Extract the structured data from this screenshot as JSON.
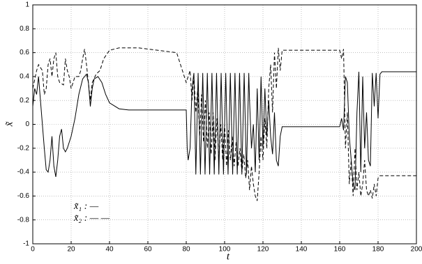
{
  "chart_data": {
    "type": "line",
    "xlabel": "t",
    "ylabel": "x̃",
    "xlim": [
      0,
      200
    ],
    "xticks": [
      0,
      20,
      40,
      60,
      80,
      100,
      120,
      140,
      160,
      180,
      200
    ],
    "ylim": [
      -1,
      1
    ],
    "yticks": [
      -1,
      -0.8,
      -0.6,
      -0.4,
      -0.2,
      0,
      0.2,
      0.4,
      0.6,
      0.8,
      1
    ],
    "grid": true,
    "series": [
      {
        "name": "x̃₁ : —",
        "color": "#000000",
        "dash": "none",
        "x": [
          0,
          1,
          2,
          3,
          4,
          5,
          6,
          7,
          8,
          9,
          10,
          11,
          12,
          13,
          14,
          15,
          16,
          17,
          18,
          20,
          22,
          24,
          26,
          28,
          29,
          30,
          31,
          32,
          34,
          36,
          38,
          40,
          45,
          50,
          60,
          70,
          80,
          80.5,
          81,
          82,
          83,
          84,
          85,
          86.2,
          87.4,
          88.6,
          89.8,
          91,
          92.2,
          93.4,
          94.6,
          95.8,
          97,
          98.2,
          99.4,
          100.6,
          101.8,
          103,
          104.2,
          105.4,
          106.6,
          107.8,
          109,
          110.2,
          111.4,
          112.6,
          113,
          114,
          115,
          116,
          117,
          118,
          119,
          120,
          121,
          122,
          123,
          124,
          125,
          126,
          127,
          128,
          129,
          130,
          135,
          145,
          160,
          161,
          162,
          163,
          164,
          165,
          166,
          167,
          168,
          169,
          170,
          171,
          172,
          173,
          174,
          175,
          176,
          177,
          178,
          179,
          180,
          181,
          182,
          200
        ],
        "values": [
          0.15,
          0.3,
          0.25,
          0.4,
          0.2,
          0,
          -0.2,
          -0.38,
          -0.4,
          -0.3,
          -0.1,
          -0.35,
          -0.44,
          -0.3,
          -0.1,
          -0.04,
          -0.2,
          -0.23,
          -0.2,
          -0.1,
          0.05,
          0.25,
          0.38,
          0.42,
          0.35,
          0.15,
          0.3,
          0.38,
          0.4,
          0.35,
          0.25,
          0.18,
          0.13,
          0.12,
          0.12,
          0.12,
          0.12,
          -0.2,
          -0.3,
          -0.2,
          0.3,
          0.43,
          -0.42,
          0.43,
          -0.42,
          0.43,
          -0.42,
          0.43,
          -0.42,
          0.43,
          -0.42,
          0.43,
          -0.42,
          0.43,
          -0.42,
          0.43,
          -0.42,
          0.43,
          -0.42,
          0.43,
          -0.42,
          0.43,
          -0.42,
          0.43,
          -0.42,
          0.43,
          0.2,
          -0.2,
          0,
          -0.4,
          0.3,
          -0.3,
          0.4,
          -0.2,
          0.3,
          -0.1,
          0.2,
          -0.1,
          -0.25,
          0.1,
          -0.3,
          -0.35,
          -0.1,
          -0.02,
          -0.02,
          -0.02,
          -0.02,
          0.05,
          -0.05,
          0.4,
          0.35,
          -0.1,
          -0.3,
          -0.5,
          -0.55,
          0.1,
          0.44,
          -0.4,
          0.4,
          -0.2,
          0.1,
          -0.3,
          -0.35,
          0.43,
          0.15,
          0.43,
          0.05,
          0.42,
          0.44,
          0.44
        ]
      },
      {
        "name": "x̃₂ : — —",
        "color": "#000000",
        "dash": "5,3",
        "x": [
          0,
          2,
          3,
          5,
          6,
          7,
          8,
          9,
          10,
          11,
          12,
          13,
          14,
          16,
          17,
          18,
          19,
          20,
          22,
          24,
          25,
          26,
          27,
          28,
          29,
          30,
          31,
          33,
          35,
          37,
          40,
          45,
          55,
          65,
          75,
          80,
          82,
          83,
          84,
          85,
          86,
          87,
          88,
          89,
          90,
          91,
          92,
          93,
          94,
          95,
          96,
          97,
          98,
          99,
          100,
          101,
          102,
          103,
          104,
          105,
          106,
          107,
          108,
          109,
          110,
          111,
          112,
          113,
          114,
          115,
          116,
          117,
          118,
          119,
          120,
          121,
          122,
          123,
          124,
          125,
          126,
          127,
          128,
          129,
          130,
          140,
          150,
          160,
          161,
          162,
          163,
          164,
          165,
          166,
          167,
          168,
          169,
          170,
          171,
          172,
          173,
          174,
          175,
          176,
          177,
          178,
          179,
          180,
          181,
          200
        ],
        "values": [
          0.3,
          0.45,
          0.5,
          0.45,
          0.25,
          0.3,
          0.5,
          0.55,
          0.4,
          0.55,
          0.6,
          0.4,
          0.35,
          0.33,
          0.55,
          0.45,
          0.4,
          0.3,
          0.4,
          0.4,
          0.45,
          0.55,
          0.63,
          0.5,
          0.35,
          0.2,
          0.35,
          0.42,
          0.45,
          0.55,
          0.62,
          0.64,
          0.64,
          0.62,
          0.6,
          0.35,
          0.45,
          0.2,
          0.4,
          0.1,
          0.3,
          -0.1,
          0.25,
          -0.15,
          0.2,
          -0.2,
          0.1,
          -0.25,
          0.1,
          -0.3,
          0.05,
          -0.3,
          0,
          -0.3,
          0,
          -0.35,
          -0.05,
          -0.3,
          -0.1,
          -0.35,
          -0.15,
          -0.35,
          -0.2,
          -0.4,
          -0.25,
          -0.45,
          -0.3,
          -0.55,
          -0.35,
          -0.5,
          -0.6,
          -0.64,
          -0.4,
          -0.1,
          -0.3,
          0.05,
          -0.2,
          0.3,
          0.5,
          0.1,
          0.6,
          0.3,
          0.64,
          0.45,
          0.62,
          0.62,
          0.62,
          0.62,
          0.55,
          0.63,
          -0.2,
          0.1,
          -0.5,
          -0.3,
          -0.6,
          -0.2,
          -0.55,
          -0.4,
          -0.6,
          -0.5,
          -0.3,
          -0.55,
          -0.6,
          -0.55,
          -0.62,
          -0.5,
          -0.6,
          -0.45,
          -0.43,
          -0.43
        ]
      }
    ]
  }
}
